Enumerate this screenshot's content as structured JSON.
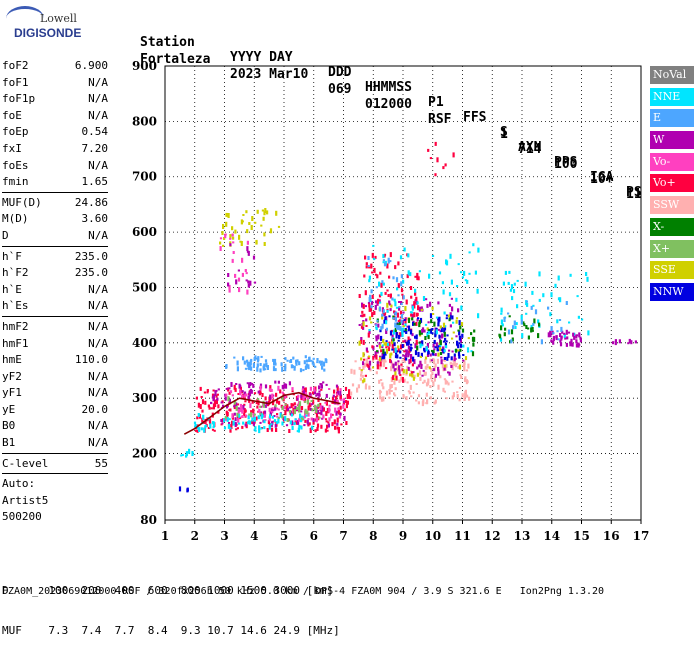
{
  "logo": {
    "line1": "Lowell",
    "line2": "DIGISONDE"
  },
  "header": {
    "line1": [
      "Station",
      "YYYY DAY",
      "DDD",
      "HHMMSS",
      "P1",
      "FFS",
      "S",
      "AXN",
      "PPS",
      "IGA",
      "PS"
    ],
    "line2": [
      "Fortaleza",
      "2023 Mar10",
      "069",
      "012000",
      "RSF",
      "1",
      "714",
      "100",
      "10+",
      "11"
    ]
  },
  "params": [
    {
      "k": "foF2",
      "v": "6.900"
    },
    {
      "k": "foF1",
      "v": "N/A"
    },
    {
      "k": "foF1p",
      "v": "N/A"
    },
    {
      "k": "foE",
      "v": "N/A"
    },
    {
      "k": "foEp",
      "v": "0.54"
    },
    {
      "k": "fxI",
      "v": "7.20"
    },
    {
      "k": "foEs",
      "v": "N/A"
    },
    {
      "k": "fmin",
      "v": "1.65"
    },
    {
      "k": "MUF(D)",
      "v": "24.86"
    },
    {
      "k": "M(D)",
      "v": "3.60"
    },
    {
      "k": "D",
      "v": "N/A"
    },
    {
      "k": "h`F",
      "v": "235.0"
    },
    {
      "k": "h`F2",
      "v": "235.0"
    },
    {
      "k": "h`E",
      "v": "N/A"
    },
    {
      "k": "h`Es",
      "v": "N/A"
    },
    {
      "k": "hmF2",
      "v": "N/A"
    },
    {
      "k": "hmF1",
      "v": "N/A"
    },
    {
      "k": "hmE",
      "v": "110.0"
    },
    {
      "k": "yF2",
      "v": "N/A"
    },
    {
      "k": "yF1",
      "v": "N/A"
    },
    {
      "k": "yE",
      "v": "20.0"
    },
    {
      "k": "B0",
      "v": "N/A"
    },
    {
      "k": "B1",
      "v": "N/A"
    },
    {
      "k": "C-level",
      "v": "55"
    }
  ],
  "auto": {
    "line1": "Auto:",
    "line2": "Artist5",
    "line3": "500200"
  },
  "legend": [
    {
      "label": "NoVal",
      "color": "#808080"
    },
    {
      "label": "NNE",
      "color": "#00e5ff"
    },
    {
      "label": "E",
      "color": "#4da6ff"
    },
    {
      "label": "W",
      "color": "#b000b0"
    },
    {
      "label": "Vo-",
      "color": "#ff40c0"
    },
    {
      "label": "Vo+",
      "color": "#ff0040"
    },
    {
      "label": "SSW",
      "color": "#ffb0b0"
    },
    {
      "label": "X-",
      "color": "#008000"
    },
    {
      "label": "X+",
      "color": "#80c060"
    },
    {
      "label": "SSE",
      "color": "#d0d000"
    },
    {
      "label": "NNW",
      "color": "#0000e0"
    }
  ],
  "muf_table": {
    "d_label": "D",
    "d_values": [
      "100",
      "200",
      "400",
      "600",
      "800",
      "1000",
      "1500",
      "3000"
    ],
    "d_unit": "[km]",
    "m_label": "MUF",
    "m_values": [
      "7.3",
      "7.4",
      "7.7",
      "8.4",
      "9.3",
      "10.7",
      "14.6",
      "24.9"
    ],
    "m_unit": "[MHz]"
  },
  "footer": "FZA0M_2023069012000.RSF / 320fx256h 50 kHz 5.0 km / DPS-4 FZA0M 904 / 3.9 S 321.6 E   Ion2Png 1.3.20",
  "chart_data": {
    "type": "scatter",
    "xlim": [
      1,
      17
    ],
    "ylim": [
      80,
      900
    ],
    "x_ticks": [
      1,
      2,
      3,
      4,
      5,
      6,
      7,
      8,
      9,
      10,
      11,
      12,
      13,
      14,
      15,
      16,
      17
    ],
    "y_ticks": [
      80,
      200,
      300,
      400,
      500,
      600,
      700,
      800,
      900
    ],
    "grid": true,
    "legend_position": "right",
    "trace": {
      "name": "O-trace",
      "x": [
        1.65,
        2.0,
        2.5,
        3.0,
        3.5,
        4.0,
        4.5,
        5.0,
        5.5,
        6.0,
        6.5,
        6.9
      ],
      "y": [
        235,
        245,
        265,
        285,
        300,
        295,
        290,
        305,
        310,
        300,
        295,
        290
      ]
    },
    "clusters": [
      {
        "series": "E",
        "x": [
          3.0,
          6.4
        ],
        "y": [
          350,
          375
        ],
        "n": 90
      },
      {
        "series": "Vo+",
        "x": [
          2.0,
          7.2
        ],
        "y": [
          240,
          320
        ],
        "n": 260
      },
      {
        "series": "W",
        "x": [
          2.5,
          7.0
        ],
        "y": [
          250,
          330
        ],
        "n": 140
      },
      {
        "series": "Vo-",
        "x": [
          3.0,
          7.0
        ],
        "y": [
          260,
          320
        ],
        "n": 90
      },
      {
        "series": "NNE",
        "x": [
          1.9,
          6.0
        ],
        "y": [
          240,
          270
        ],
        "n": 70
      },
      {
        "series": "X+",
        "x": [
          3.0,
          6.5
        ],
        "y": [
          260,
          300
        ],
        "n": 40
      },
      {
        "series": "SSE",
        "x": [
          2.8,
          4.8
        ],
        "y": [
          575,
          640
        ],
        "n": 40
      },
      {
        "series": "Vo-",
        "x": [
          2.8,
          3.8
        ],
        "y": [
          490,
          600
        ],
        "n": 20
      },
      {
        "series": "W",
        "x": [
          3.0,
          4.0
        ],
        "y": [
          500,
          580
        ],
        "n": 15
      },
      {
        "series": "SSW",
        "x": [
          7.2,
          11.2
        ],
        "y": [
          290,
          370
        ],
        "n": 180
      },
      {
        "series": "W",
        "x": [
          7.5,
          11.0
        ],
        "y": [
          340,
          480
        ],
        "n": 150
      },
      {
        "series": "Vo+",
        "x": [
          7.5,
          9.5
        ],
        "y": [
          330,
          560
        ],
        "n": 130
      },
      {
        "series": "NNW",
        "x": [
          8.2,
          11.0
        ],
        "y": [
          370,
          450
        ],
        "n": 110
      },
      {
        "series": "NNE",
        "x": [
          7.8,
          11.5
        ],
        "y": [
          380,
          580
        ],
        "n": 90
      },
      {
        "series": "SSE",
        "x": [
          7.5,
          11.3
        ],
        "y": [
          330,
          470
        ],
        "n": 60
      },
      {
        "series": "X-",
        "x": [
          8.0,
          11.5
        ],
        "y": [
          380,
          450
        ],
        "n": 40
      },
      {
        "series": "E",
        "x": [
          7.8,
          9.0
        ],
        "y": [
          420,
          560
        ],
        "n": 40
      },
      {
        "series": "NNE",
        "x": [
          12.2,
          15.2
        ],
        "y": [
          400,
          530
        ],
        "n": 50
      },
      {
        "series": "W",
        "x": [
          13.8,
          15.0
        ],
        "y": [
          395,
          420
        ],
        "n": 35
      },
      {
        "series": "X-",
        "x": [
          12.2,
          13.8
        ],
        "y": [
          400,
          450
        ],
        "n": 20
      },
      {
        "series": "E",
        "x": [
          12.3,
          14.5
        ],
        "y": [
          400,
          480
        ],
        "n": 20
      },
      {
        "series": "Vo+",
        "x": [
          9.8,
          10.8
        ],
        "y": [
          700,
          780
        ],
        "n": 8
      },
      {
        "series": "W",
        "x": [
          16.0,
          16.8
        ],
        "y": [
          395,
          405
        ],
        "n": 8
      },
      {
        "series": "NNE",
        "x": [
          1.5,
          1.9
        ],
        "y": [
          195,
          205
        ],
        "n": 6
      },
      {
        "series": "NNW",
        "x": [
          1.4,
          1.8
        ],
        "y": [
          130,
          140
        ],
        "n": 4
      }
    ]
  }
}
